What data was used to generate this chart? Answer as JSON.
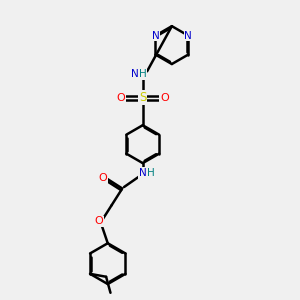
{
  "bg_color": "#f0f0f0",
  "bond_color": "#000000",
  "bond_width": 1.8,
  "atom_colors": {
    "N": "#0000cc",
    "O": "#ff0000",
    "S": "#cccc00",
    "H": "#008080",
    "C": "#000000"
  },
  "dbo": 0.035
}
